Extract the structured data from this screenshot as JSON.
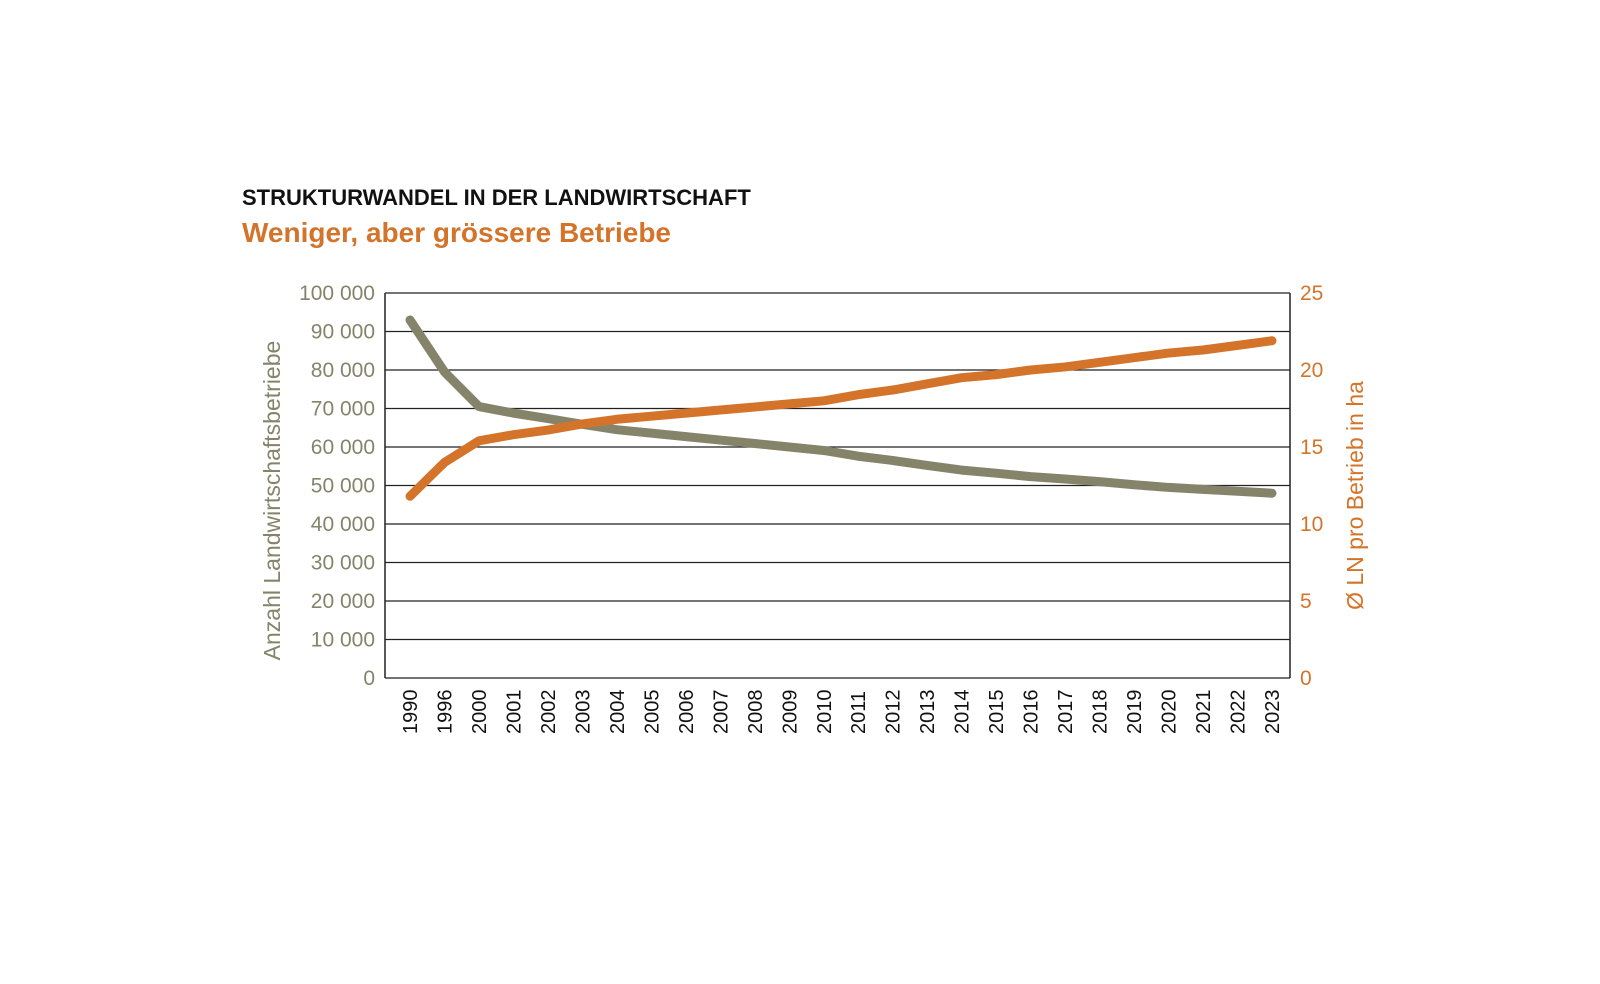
{
  "kicker": "STRUKTURWANDEL IN DER LANDWIRTSCHAFT",
  "headline": "Weniger, aber grössere Betriebe",
  "chart_data": {
    "type": "line",
    "categories": [
      "1990",
      "1996",
      "2000",
      "2001",
      "2002",
      "2003",
      "2004",
      "2005",
      "2006",
      "2007",
      "2008",
      "2009",
      "2010",
      "2011",
      "2012",
      "2013",
      "2014",
      "2015",
      "2016",
      "2017",
      "2018",
      "2019",
      "2020",
      "2021",
      "2022",
      "2023"
    ],
    "ylabel_left": "Anzahl Landwirtschaftsbetriebe",
    "ylabel_right": "Ø LN pro Betrieb in ha",
    "ylim_left": [
      0,
      100000
    ],
    "ylim_right": [
      0,
      25
    ],
    "yticks_left": [
      "0",
      "10 000",
      "20 000",
      "30 000",
      "40 000",
      "50 000",
      "60 000",
      "70 000",
      "80 000",
      "90 000",
      "100 000"
    ],
    "yticks_right": [
      "0",
      "5",
      "10",
      "15",
      "20",
      "25"
    ],
    "grid": true,
    "series": [
      {
        "axis": "left",
        "color": "#85846a",
        "values": [
          93000,
          79500,
          70500,
          68800,
          67400,
          65900,
          64500,
          63600,
          62700,
          61800,
          60900,
          60000,
          59100,
          57600,
          56500,
          55200,
          54000,
          53200,
          52300,
          51700,
          51000,
          50200,
          49500,
          49000,
          48500,
          48000
        ]
      },
      {
        "axis": "right",
        "color": "#d4742a",
        "values": [
          11.8,
          14.0,
          15.4,
          15.8,
          16.1,
          16.5,
          16.8,
          17.0,
          17.2,
          17.4,
          17.6,
          17.8,
          18.0,
          18.4,
          18.7,
          19.1,
          19.5,
          19.7,
          20.0,
          20.2,
          20.5,
          20.8,
          21.1,
          21.3,
          21.6,
          21.9
        ]
      }
    ]
  },
  "colors": {
    "olive": "#85846a",
    "orange": "#d4742a",
    "grid": "#222222"
  }
}
